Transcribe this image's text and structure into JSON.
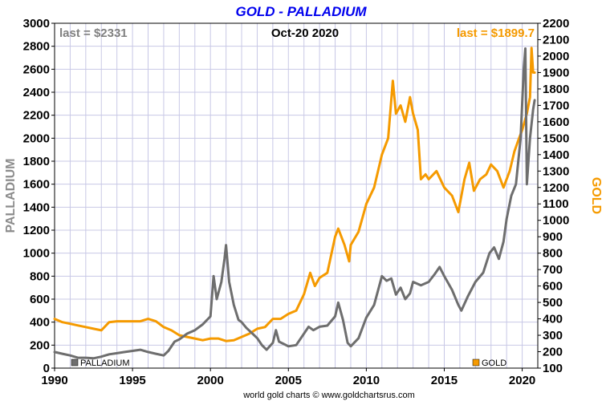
{
  "chart_data": {
    "type": "line",
    "title": "GOLD - PALLADIUM",
    "date_label": "Oct-20  2020",
    "left_axis": {
      "label": "PALLADIUM",
      "min": 0,
      "max": 3000,
      "ticks": [
        0,
        200,
        400,
        600,
        800,
        1000,
        1200,
        1400,
        1600,
        1800,
        2000,
        2200,
        2400,
        2600,
        2800,
        3000
      ]
    },
    "right_axis": {
      "label": "GOLD",
      "min": 100,
      "max": 2200,
      "ticks": [
        100,
        200,
        300,
        400,
        500,
        600,
        700,
        800,
        900,
        1000,
        1100,
        1200,
        1300,
        1400,
        1500,
        1600,
        1700,
        1800,
        1900,
        2000,
        2100,
        2200
      ]
    },
    "x_axis": {
      "min": 1990,
      "max": 2021,
      "ticks": [
        "1990",
        "1995",
        "2000",
        "2005",
        "2010",
        "2015",
        "2020"
      ]
    },
    "grid": true,
    "series": [
      {
        "name": "PALLADIUM",
        "axis": "left",
        "color": "#6e6e6e",
        "last_label": "last = $2331",
        "points": [
          [
            1990.0,
            140
          ],
          [
            1990.5,
            125
          ],
          [
            1991.0,
            110
          ],
          [
            1991.5,
            90
          ],
          [
            1992.0,
            90
          ],
          [
            1992.5,
            85
          ],
          [
            1993.0,
            100
          ],
          [
            1993.5,
            120
          ],
          [
            1994.0,
            130
          ],
          [
            1994.5,
            140
          ],
          [
            1995.0,
            150
          ],
          [
            1995.5,
            160
          ],
          [
            1996.0,
            140
          ],
          [
            1996.5,
            125
          ],
          [
            1997.0,
            110
          ],
          [
            1997.3,
            150
          ],
          [
            1997.7,
            230
          ],
          [
            1998.0,
            250
          ],
          [
            1998.5,
            300
          ],
          [
            1999.0,
            330
          ],
          [
            1999.5,
            380
          ],
          [
            2000.0,
            450
          ],
          [
            2000.2,
            800
          ],
          [
            2000.4,
            600
          ],
          [
            2000.7,
            750
          ],
          [
            2000.9,
            950
          ],
          [
            2001.0,
            1070
          ],
          [
            2001.2,
            750
          ],
          [
            2001.5,
            550
          ],
          [
            2001.8,
            420
          ],
          [
            2002.0,
            400
          ],
          [
            2002.3,
            350
          ],
          [
            2002.7,
            300
          ],
          [
            2003.0,
            260
          ],
          [
            2003.3,
            200
          ],
          [
            2003.6,
            160
          ],
          [
            2004.0,
            220
          ],
          [
            2004.2,
            330
          ],
          [
            2004.4,
            230
          ],
          [
            2004.7,
            210
          ],
          [
            2005.0,
            190
          ],
          [
            2005.5,
            200
          ],
          [
            2006.0,
            300
          ],
          [
            2006.3,
            360
          ],
          [
            2006.6,
            330
          ],
          [
            2007.0,
            360
          ],
          [
            2007.5,
            370
          ],
          [
            2008.0,
            450
          ],
          [
            2008.2,
            570
          ],
          [
            2008.5,
            420
          ],
          [
            2008.8,
            220
          ],
          [
            2009.0,
            190
          ],
          [
            2009.5,
            260
          ],
          [
            2010.0,
            440
          ],
          [
            2010.5,
            550
          ],
          [
            2011.0,
            800
          ],
          [
            2011.3,
            760
          ],
          [
            2011.6,
            780
          ],
          [
            2011.9,
            640
          ],
          [
            2012.2,
            700
          ],
          [
            2012.5,
            600
          ],
          [
            2012.8,
            650
          ],
          [
            2013.0,
            750
          ],
          [
            2013.5,
            720
          ],
          [
            2014.0,
            750
          ],
          [
            2014.4,
            820
          ],
          [
            2014.7,
            880
          ],
          [
            2015.0,
            800
          ],
          [
            2015.5,
            680
          ],
          [
            2015.9,
            550
          ],
          [
            2016.1,
            500
          ],
          [
            2016.5,
            620
          ],
          [
            2017.0,
            750
          ],
          [
            2017.5,
            830
          ],
          [
            2017.9,
            1000
          ],
          [
            2018.2,
            1050
          ],
          [
            2018.5,
            950
          ],
          [
            2018.8,
            1100
          ],
          [
            2019.0,
            1300
          ],
          [
            2019.3,
            1500
          ],
          [
            2019.6,
            1600
          ],
          [
            2019.9,
            2000
          ],
          [
            2020.1,
            2600
          ],
          [
            2020.2,
            2780
          ],
          [
            2020.3,
            1600
          ],
          [
            2020.5,
            2000
          ],
          [
            2020.7,
            2250
          ],
          [
            2020.8,
            2331
          ]
        ]
      },
      {
        "name": "GOLD",
        "axis": "right",
        "color": "#f59a00",
        "last_label": "last = $1899.7",
        "points": [
          [
            1990.0,
            400
          ],
          [
            1990.5,
            380
          ],
          [
            1991.0,
            370
          ],
          [
            1991.5,
            360
          ],
          [
            1992.0,
            350
          ],
          [
            1992.5,
            340
          ],
          [
            1993.0,
            330
          ],
          [
            1993.5,
            380
          ],
          [
            1994.0,
            385
          ],
          [
            1994.5,
            385
          ],
          [
            1995.0,
            385
          ],
          [
            1995.5,
            385
          ],
          [
            1996.0,
            400
          ],
          [
            1996.5,
            385
          ],
          [
            1997.0,
            350
          ],
          [
            1997.5,
            330
          ],
          [
            1998.0,
            300
          ],
          [
            1998.5,
            290
          ],
          [
            1999.0,
            280
          ],
          [
            1999.5,
            270
          ],
          [
            2000.0,
            280
          ],
          [
            2000.5,
            280
          ],
          [
            2001.0,
            265
          ],
          [
            2001.5,
            270
          ],
          [
            2002.0,
            290
          ],
          [
            2002.5,
            310
          ],
          [
            2003.0,
            340
          ],
          [
            2003.5,
            350
          ],
          [
            2004.0,
            400
          ],
          [
            2004.5,
            400
          ],
          [
            2005.0,
            430
          ],
          [
            2005.5,
            450
          ],
          [
            2006.0,
            550
          ],
          [
            2006.4,
            680
          ],
          [
            2006.7,
            600
          ],
          [
            2007.0,
            650
          ],
          [
            2007.5,
            680
          ],
          [
            2008.0,
            900
          ],
          [
            2008.2,
            950
          ],
          [
            2008.6,
            850
          ],
          [
            2008.9,
            750
          ],
          [
            2009.0,
            850
          ],
          [
            2009.5,
            930
          ],
          [
            2010.0,
            1100
          ],
          [
            2010.5,
            1200
          ],
          [
            2011.0,
            1400
          ],
          [
            2011.4,
            1500
          ],
          [
            2011.7,
            1850
          ],
          [
            2011.9,
            1650
          ],
          [
            2012.2,
            1700
          ],
          [
            2012.5,
            1600
          ],
          [
            2012.8,
            1750
          ],
          [
            2013.0,
            1650
          ],
          [
            2013.3,
            1550
          ],
          [
            2013.5,
            1250
          ],
          [
            2013.8,
            1280
          ],
          [
            2014.0,
            1250
          ],
          [
            2014.5,
            1300
          ],
          [
            2015.0,
            1200
          ],
          [
            2015.5,
            1150
          ],
          [
            2015.9,
            1050
          ],
          [
            2016.3,
            1250
          ],
          [
            2016.6,
            1350
          ],
          [
            2016.9,
            1180
          ],
          [
            2017.3,
            1250
          ],
          [
            2017.7,
            1280
          ],
          [
            2018.0,
            1340
          ],
          [
            2018.4,
            1300
          ],
          [
            2018.8,
            1200
          ],
          [
            2019.2,
            1300
          ],
          [
            2019.5,
            1420
          ],
          [
            2019.8,
            1500
          ],
          [
            2020.0,
            1550
          ],
          [
            2020.3,
            1650
          ],
          [
            2020.5,
            1750
          ],
          [
            2020.6,
            2050
          ],
          [
            2020.7,
            1900
          ],
          [
            2020.8,
            1899.7
          ]
        ]
      }
    ],
    "legend": [
      "PALLADIUM",
      "GOLD"
    ],
    "credit": "world gold charts © www.goldchartsrus.com"
  }
}
